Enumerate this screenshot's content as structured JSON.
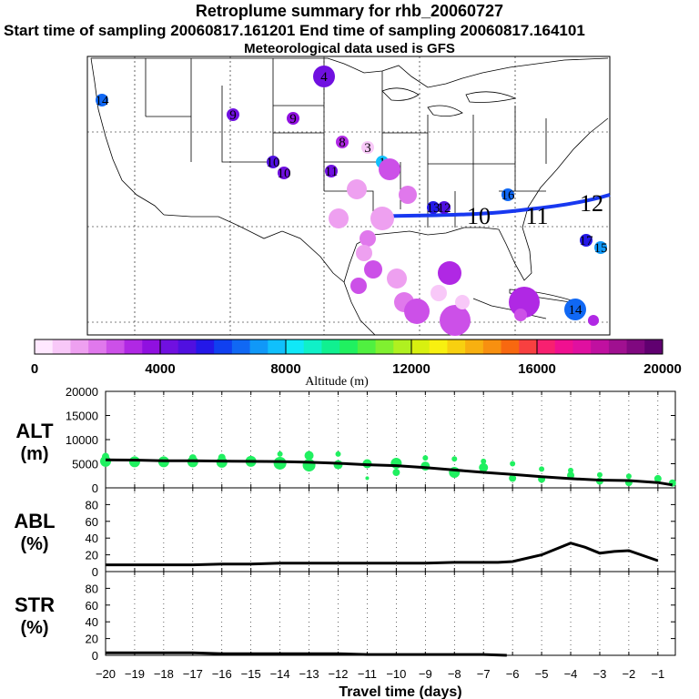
{
  "header": {
    "title": "Retroplume summary for rhb_20060727",
    "times": "Start time of sampling 20060817.161201     End time of sampling 20060817.164101",
    "meteo": "Meteorological data used is GFS"
  },
  "colorbar": {
    "label": "Altitude (m)",
    "ticks": [
      "0",
      "4000",
      "8000",
      "12000",
      "16000",
      "20000"
    ],
    "colors": [
      "#ffe8ff",
      "#f8c8f8",
      "#eea0f0",
      "#e078ec",
      "#cc50e8",
      "#b028e4",
      "#9010e0",
      "#7010e0",
      "#5010e0",
      "#2418e8",
      "#1040f0",
      "#1068f4",
      "#1098f8",
      "#10c0fc",
      "#10e8f8",
      "#10f0c8",
      "#10f090",
      "#20f060",
      "#50f040",
      "#80f030",
      "#b0f020",
      "#d8f010",
      "#f8f010",
      "#f8d010",
      "#f8b010",
      "#f89010",
      "#f86810",
      "#f84040",
      "#f82070",
      "#f01090",
      "#e010a0",
      "#c010a0",
      "#a01090",
      "#800880",
      "#600070"
    ]
  },
  "map": {
    "trajectory_labels": [
      {
        "label": "4",
        "alt": 4300,
        "size": "m"
      },
      {
        "label": "14",
        "alt": 6500,
        "size": "s"
      },
      {
        "label": "10",
        "alt": 4600,
        "size": "s"
      },
      {
        "label": "9",
        "alt": 4000,
        "size": "s"
      },
      {
        "label": "9",
        "alt": 3800,
        "size": "s"
      },
      {
        "label": "3",
        "alt": 1000,
        "size": "s"
      },
      {
        "label": "10",
        "alt": 4400,
        "size": "s"
      },
      {
        "label": "11",
        "alt": 4500,
        "size": "s"
      },
      {
        "label": "12",
        "alt": 4600,
        "size": "s"
      },
      {
        "label": "16",
        "alt": 6800,
        "size": "s"
      },
      {
        "label": "13",
        "alt": 5200,
        "size": "s"
      },
      {
        "label": "8",
        "alt": 3400,
        "size": "s"
      },
      {
        "label": "1",
        "alt": 7900,
        "size": "s"
      },
      {
        "label": "14",
        "alt": 6300,
        "size": "m"
      },
      {
        "label": "15",
        "alt": 7300,
        "size": "s"
      },
      {
        "label": "17",
        "alt": 5400,
        "size": "s"
      }
    ],
    "trajectory_line_labels": [
      "10",
      "11",
      "12"
    ]
  },
  "chart_data": [
    {
      "type": "scatter",
      "title": "ALT (m)",
      "ylabel": "ALT (m)",
      "ylim": [
        0,
        20000
      ],
      "yticks": [
        "0",
        "5000",
        "10000",
        "15000",
        "20000"
      ],
      "line_x": [
        -20,
        -19,
        -18,
        -17,
        -16,
        -15,
        -14,
        -13,
        -12,
        -11,
        -10,
        -9,
        -8,
        -7,
        -6,
        -5,
        -4,
        -3,
        -2,
        -1,
        -0.5
      ],
      "line_y": [
        5800,
        5750,
        5600,
        5600,
        5550,
        5500,
        5450,
        5300,
        5100,
        4800,
        4600,
        4200,
        3700,
        3200,
        2800,
        2300,
        1900,
        1600,
        1500,
        1100,
        600
      ],
      "scatter_x": [
        -20,
        -20,
        -19,
        -18,
        -17,
        -17,
        -16,
        -16,
        -15,
        -14,
        -14,
        -13,
        -13,
        -12,
        -12,
        -11,
        -11,
        -10,
        -10,
        -9,
        -9,
        -8,
        -8,
        -7,
        -7,
        -6,
        -6,
        -5,
        -5,
        -4,
        -4,
        -3,
        -3,
        -2,
        -2,
        -1,
        -0.5
      ],
      "scatter_y": [
        5500,
        6500,
        5400,
        5400,
        5400,
        6200,
        5300,
        6300,
        5500,
        5100,
        7000,
        4700,
        6700,
        4800,
        7000,
        5000,
        2000,
        5100,
        3200,
        4500,
        6200,
        3200,
        6000,
        4200,
        5500,
        2000,
        5000,
        1800,
        3900,
        2600,
        3600,
        1400,
        2700,
        1100,
        2400,
        1900,
        1000
      ],
      "scatter_size": [
        6,
        4,
        6,
        6,
        6,
        4,
        6,
        4,
        6,
        7,
        3,
        7,
        5,
        5,
        3,
        5,
        2,
        6,
        4,
        5,
        3,
        6,
        3,
        5,
        3,
        4,
        3,
        4,
        3,
        4,
        3,
        4,
        3,
        4,
        3,
        4,
        4
      ]
    },
    {
      "type": "line",
      "title": "ABL (%)",
      "ylabel": "ABL (%)",
      "ylim": [
        0,
        100
      ],
      "yticks": [
        "0",
        "20",
        "40",
        "60",
        "80"
      ],
      "x": [
        -20,
        -19,
        -18,
        -17,
        -16,
        -15,
        -14,
        -13,
        -12,
        -11,
        -10,
        -9,
        -8,
        -7,
        -6.5,
        -6,
        -5,
        -4,
        -3.5,
        -3,
        -2.5,
        -2,
        -1
      ],
      "y": [
        8,
        8,
        8,
        8,
        9,
        9,
        10,
        10,
        10,
        10,
        10,
        10,
        11,
        11,
        11,
        12,
        20,
        34,
        29,
        22,
        24,
        25,
        13
      ]
    },
    {
      "type": "line",
      "title": "STR (%)",
      "ylabel": "STR (%)",
      "ylim": [
        0,
        100
      ],
      "yticks": [
        "0",
        "20",
        "40",
        "60",
        "80"
      ],
      "x": [
        -20,
        -19,
        -18,
        -17,
        -16,
        -15,
        -14,
        -13,
        -12,
        -11,
        -10,
        -9,
        -8,
        -7,
        -6.2
      ],
      "y": [
        3,
        3,
        3,
        3,
        2,
        2,
        2,
        2,
        2,
        1,
        1,
        1,
        1,
        1,
        0
      ]
    }
  ],
  "axes": {
    "x_ticks": [
      "−20",
      "−19",
      "−18",
      "−17",
      "−16",
      "−15",
      "−14",
      "−13",
      "−12",
      "−11",
      "−10",
      "−9",
      "−8",
      "−7",
      "−6",
      "−5",
      "−4",
      "−3",
      "−2",
      "−1"
    ],
    "x_label": "Travel time (days)",
    "panel_labels": [
      {
        "line1": "ALT",
        "line2": "(m)"
      },
      {
        "line1": "ABL",
        "line2": "(%)"
      },
      {
        "line1": "STR",
        "line2": "(%)"
      }
    ]
  }
}
